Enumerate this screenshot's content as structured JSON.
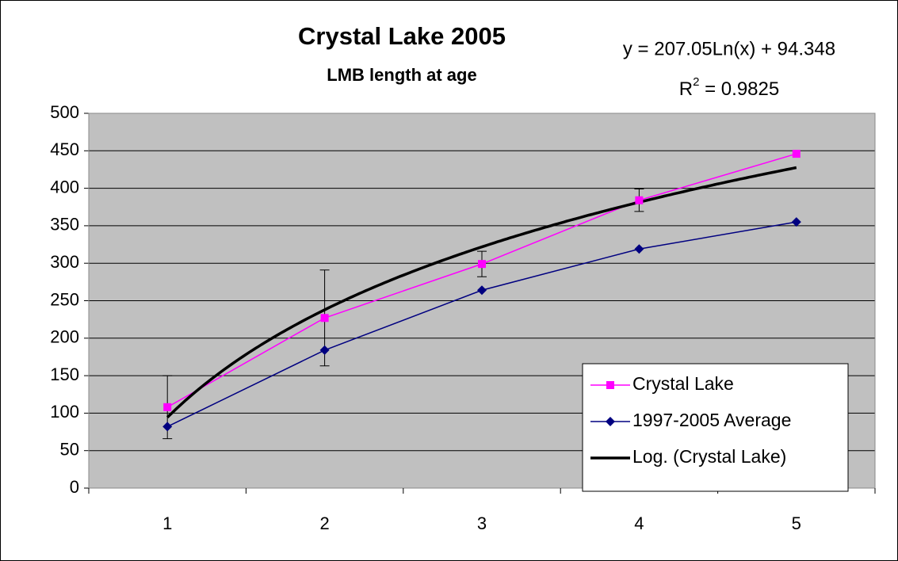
{
  "chart_data": {
    "type": "line",
    "title": "Crystal Lake 2005",
    "subtitle": "LMB length at age",
    "categories": [
      "1",
      "2",
      "3",
      "4",
      "5"
    ],
    "series": [
      {
        "name": "Crystal Lake",
        "color": "#ff00ff",
        "marker": "square",
        "values": [
          108,
          227,
          299,
          384,
          446
        ],
        "errors": [
          42,
          64,
          17,
          15,
          null
        ]
      },
      {
        "name": "1997-2005 Average",
        "color": "#000080",
        "marker": "diamond",
        "values": [
          82,
          184,
          264,
          319,
          355
        ]
      }
    ],
    "trendline": {
      "name": "Log. (Crystal Lake)",
      "color": "#000000",
      "a": 207.05,
      "b": 94.348,
      "equation": "y = 207.05Ln(x) + 94.348",
      "r2_label": [
        "R",
        "2",
        " = 0.9825"
      ]
    },
    "ylim": [
      0,
      500
    ],
    "yticks": [
      0,
      50,
      100,
      150,
      200,
      250,
      300,
      350,
      400,
      450,
      500
    ],
    "grid": true,
    "legend": "lower right"
  }
}
